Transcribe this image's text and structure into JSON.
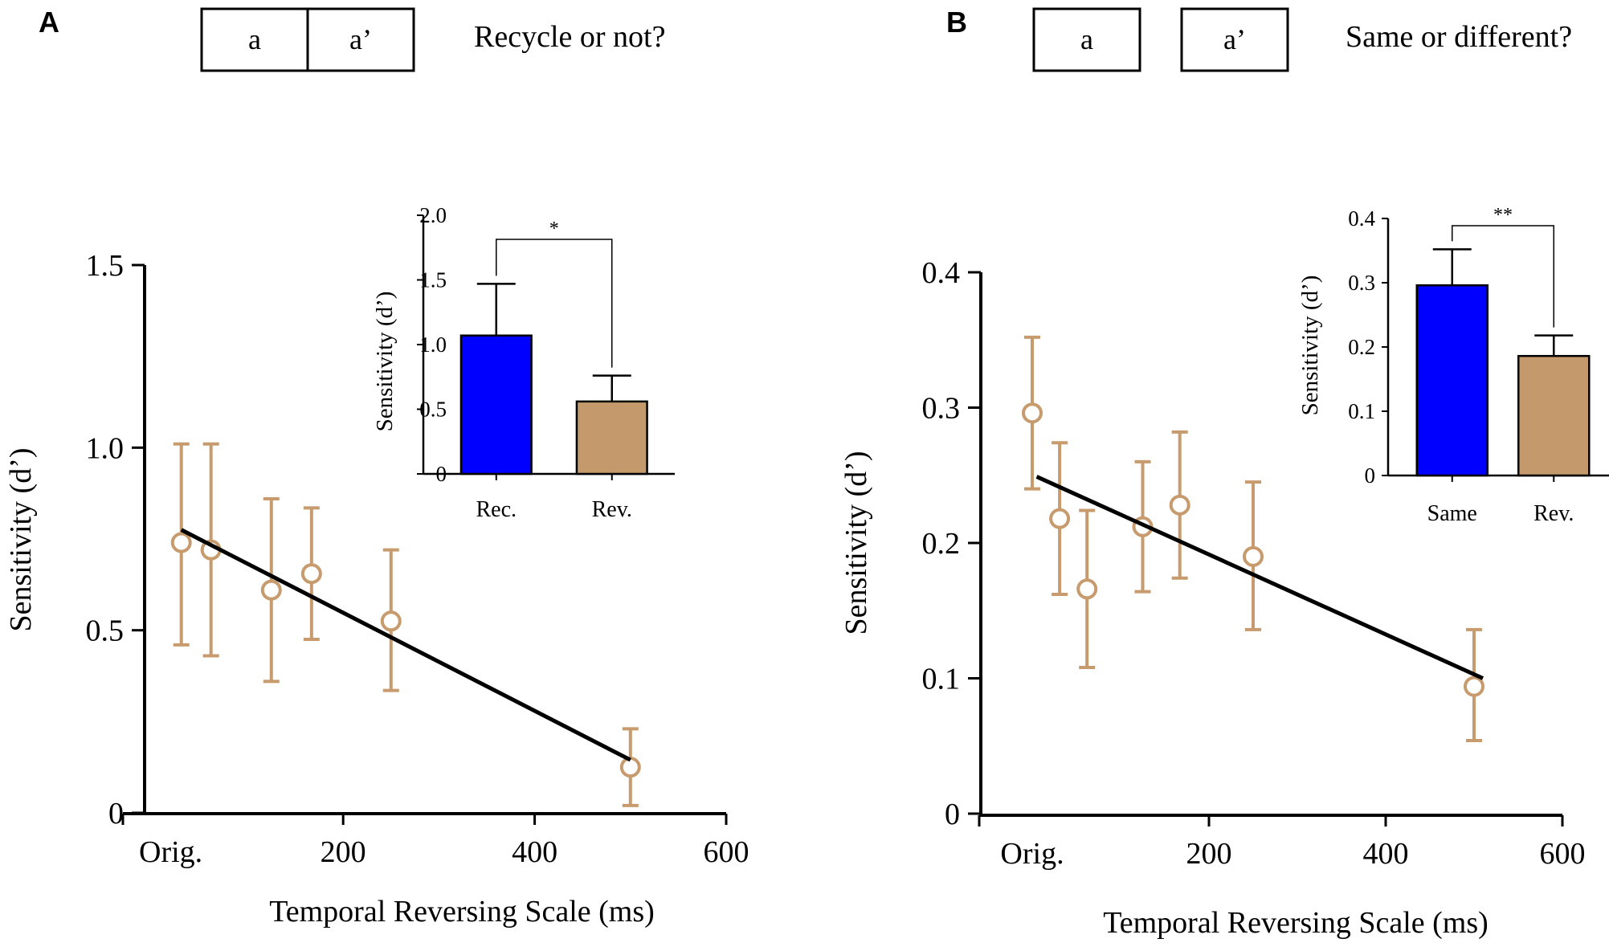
{
  "colors": {
    "points": "#c79b6d",
    "bar_blue": "#0000ff",
    "bar_tan": "#c49a6c",
    "line": "#000000"
  },
  "chart_data": [
    {
      "panel_label": "A",
      "paradigm": {
        "box_labels": [
          "a",
          "a’"
        ],
        "joined": true,
        "question": "Recycle or not?"
      },
      "main": {
        "type": "scatter",
        "xlabel": "Temporal Reversing Scale (ms)",
        "ylabel": "Sensitivity (d’)",
        "xlim": [
          -30,
          600
        ],
        "ylim": [
          0,
          1.5
        ],
        "xticks": [
          {
            "value": 20,
            "label": "Orig."
          },
          {
            "value": 200,
            "label": "200"
          },
          {
            "value": 400,
            "label": "400"
          },
          {
            "value": 600,
            "label": "600"
          }
        ],
        "yticks": [
          {
            "value": 0,
            "label": "0"
          },
          {
            "value": 0.5,
            "label": "0.5"
          },
          {
            "value": 1.0,
            "label": "1.0"
          },
          {
            "value": 1.5,
            "label": "1.5"
          }
        ],
        "points": [
          {
            "x": 31,
            "y": 0.74,
            "lo": 0.46,
            "hi": 1.01
          },
          {
            "x": 62,
            "y": 0.72,
            "lo": 0.43,
            "hi": 1.01
          },
          {
            "x": 125,
            "y": 0.61,
            "lo": 0.36,
            "hi": 0.86
          },
          {
            "x": 167,
            "y": 0.655,
            "lo": 0.475,
            "hi": 0.835
          },
          {
            "x": 250,
            "y": 0.525,
            "lo": 0.335,
            "hi": 0.72
          },
          {
            "x": 500,
            "y": 0.125,
            "lo": 0.02,
            "hi": 0.23
          }
        ],
        "fit_line": [
          {
            "x": 31,
            "y": 0.775
          },
          {
            "x": 500,
            "y": 0.145
          }
        ]
      },
      "inset": {
        "type": "bar",
        "ylabel": "Sensitivity (d’)",
        "categories": [
          "Rec.",
          "Rev."
        ],
        "values": [
          1.07,
          0.56
        ],
        "errors": [
          0.4,
          0.2
        ],
        "ylim": [
          0,
          2.0
        ],
        "yticks": [
          {
            "value": 0,
            "label": "0"
          },
          {
            "value": 0.5,
            "label": "0.5"
          },
          {
            "value": 1.0,
            "label": "1.0"
          },
          {
            "value": 1.5,
            "label": "1.5"
          },
          {
            "value": 2.0,
            "label": "2.0"
          }
        ],
        "significance": "*"
      }
    },
    {
      "panel_label": "B",
      "paradigm": {
        "box_labels": [
          "a",
          "a’"
        ],
        "joined": false,
        "question": "Same or different?"
      },
      "main": {
        "type": "scatter",
        "xlabel": "Temporal Reversing Scale (ms)",
        "ylabel": "Sensitivity (d’)",
        "xlim": [
          -60,
          600
        ],
        "ylim": [
          0,
          0.4
        ],
        "xticks": [
          {
            "value": 0,
            "label": "Orig."
          },
          {
            "value": 200,
            "label": "200"
          },
          {
            "value": 400,
            "label": "400"
          },
          {
            "value": 600,
            "label": "600"
          }
        ],
        "yticks": [
          {
            "value": 0,
            "label": "0"
          },
          {
            "value": 0.1,
            "label": "0.1"
          },
          {
            "value": 0.2,
            "label": "0.2"
          },
          {
            "value": 0.3,
            "label": "0.3"
          },
          {
            "value": 0.4,
            "label": "0.4"
          }
        ],
        "points": [
          {
            "x": 0,
            "y": 0.296,
            "lo": 0.24,
            "hi": 0.352
          },
          {
            "x": 31,
            "y": 0.218,
            "lo": 0.162,
            "hi": 0.274
          },
          {
            "x": 62,
            "y": 0.166,
            "lo": 0.108,
            "hi": 0.224
          },
          {
            "x": 125,
            "y": 0.212,
            "lo": 0.164,
            "hi": 0.26
          },
          {
            "x": 167,
            "y": 0.228,
            "lo": 0.174,
            "hi": 0.282
          },
          {
            "x": 250,
            "y": 0.19,
            "lo": 0.136,
            "hi": 0.245
          },
          {
            "x": 500,
            "y": 0.094,
            "lo": 0.054,
            "hi": 0.136
          }
        ],
        "fit_line": [
          {
            "x": 5,
            "y": 0.249
          },
          {
            "x": 510,
            "y": 0.1
          }
        ]
      },
      "inset": {
        "type": "bar",
        "ylabel": "Sensitivity (d’)",
        "categories": [
          "Same",
          "Rev."
        ],
        "values": [
          0.296,
          0.186
        ],
        "errors": [
          0.056,
          0.032
        ],
        "ylim": [
          0,
          0.4
        ],
        "yticks": [
          {
            "value": 0,
            "label": "0"
          },
          {
            "value": 0.1,
            "label": "0.1"
          },
          {
            "value": 0.2,
            "label": "0.2"
          },
          {
            "value": 0.3,
            "label": "0.3"
          },
          {
            "value": 0.4,
            "label": "0.4"
          }
        ],
        "significance": "**"
      }
    }
  ]
}
